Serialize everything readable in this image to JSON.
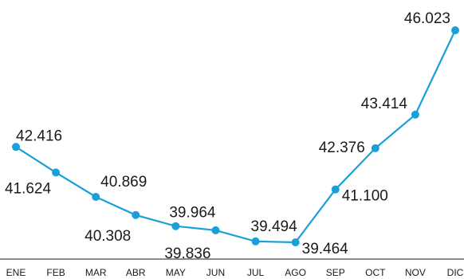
{
  "chart_data": {
    "type": "line",
    "title": "",
    "xlabel": "",
    "ylabel": "",
    "categories": [
      "ENE",
      "FEB",
      "MAR",
      "ABR",
      "MAY",
      "JUN",
      "JUL",
      "AGO",
      "SEP",
      "OCT",
      "NOV",
      "DIC"
    ],
    "series": [
      {
        "values": [
          42416,
          41624,
          40869,
          40308,
          39964,
          39836,
          39494,
          39464,
          41100,
          42376,
          43414,
          46023
        ],
        "labels": [
          "42.416",
          "41.624",
          "40.869",
          "40.308",
          "39.964",
          "39.836",
          "39.494",
          "39.464",
          "41.100",
          "42.376",
          "43.414",
          "46.023"
        ]
      }
    ],
    "ylim": [
      39000,
      46500
    ],
    "grid": false,
    "legend": "none",
    "colors": {
      "line": "#1a9fd9",
      "text": "#1a1a1a",
      "axis": "#1a1a1a"
    }
  }
}
